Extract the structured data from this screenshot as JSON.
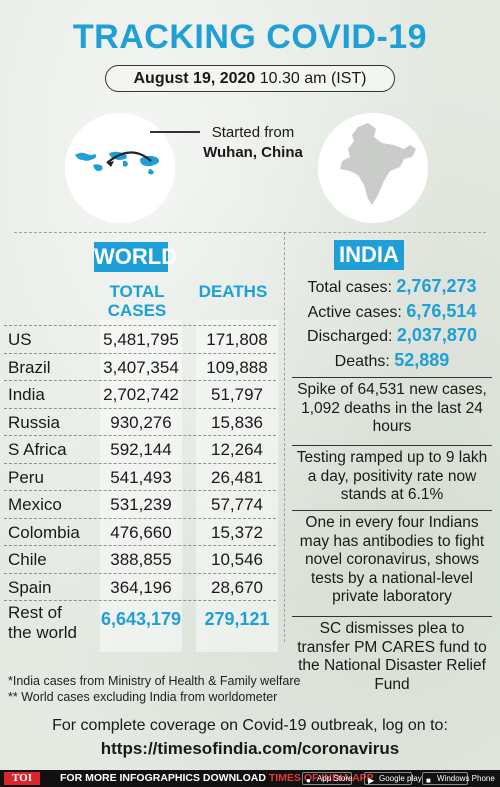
{
  "title": "TRACKING COVID-19",
  "date": {
    "bold": "August 19, 2020",
    "time": "10.30 am (IST)"
  },
  "origin": {
    "line1": "Started from",
    "line2": "Wuhan, China"
  },
  "world": {
    "badge": "WORLD",
    "col_cases": "TOTAL CASES",
    "col_deaths": "DEATHS",
    "rows": [
      {
        "country": "US",
        "cases": "5,481,795",
        "deaths": "171,808"
      },
      {
        "country": "Brazil",
        "cases": "3,407,354",
        "deaths": "109,888"
      },
      {
        "country": "India",
        "cases": "2,702,742",
        "deaths": "51,797"
      },
      {
        "country": "Russia",
        "cases": "930,276",
        "deaths": "15,836"
      },
      {
        "country": "S Africa",
        "cases": "592,144",
        "deaths": "12,264"
      },
      {
        "country": "Peru",
        "cases": "541,493",
        "deaths": "26,481"
      },
      {
        "country": "Mexico",
        "cases": "531,239",
        "deaths": "57,774"
      },
      {
        "country": "Colombia",
        "cases": "476,660",
        "deaths": "15,372"
      },
      {
        "country": "Chile",
        "cases": "388,855",
        "deaths": "10,546"
      },
      {
        "country": "Spain",
        "cases": "364,196",
        "deaths": "28,670"
      }
    ],
    "rest": {
      "label_line1": "Rest of",
      "label_line2": "the world",
      "cases": "6,643,179",
      "deaths": "279,121"
    }
  },
  "india": {
    "badge": "INDIA",
    "stats": [
      {
        "label": "Total cases:",
        "value": "2,767,273"
      },
      {
        "label": "Active cases:",
        "value": "6,76,514"
      },
      {
        "label": "Discharged:",
        "value": "2,037,870"
      },
      {
        "label": "Deaths:",
        "value": "52,889"
      }
    ],
    "news": [
      "Spike of 64,531 new cases, 1,092 deaths in the last 24 hours",
      "Testing ramped up to 9 lakh a day, positivity rate now stands at 6.1%",
      "One in every four Indians may has antibodies to fight novel coronavirus, shows tests by a national-level private laboratory",
      "SC dismisses plea to transfer PM CARES fund to the National Disaster Relief Fund"
    ]
  },
  "footnotes": [
    "*India cases from Ministry of Health & Family welfare",
    "** World cases excluding India from worldometer"
  ],
  "coverage": {
    "line1": "For complete coverage on Covid-19 outbreak, log on to:",
    "url": "https://timesofindia.com/coronavirus"
  },
  "bottom_bar": {
    "logo": "TOI",
    "text": "FOR MORE  INFOGRAPHICS DOWNLOAD",
    "app": "TIMES OF INDIA  APP",
    "stores": [
      "App Store",
      "Google play",
      "Windows Phone"
    ]
  },
  "colors": {
    "accent": "#1e9fd8",
    "map_blue": "#1e9fd8",
    "bar": "#111111",
    "logo_red": "#d9262b"
  }
}
